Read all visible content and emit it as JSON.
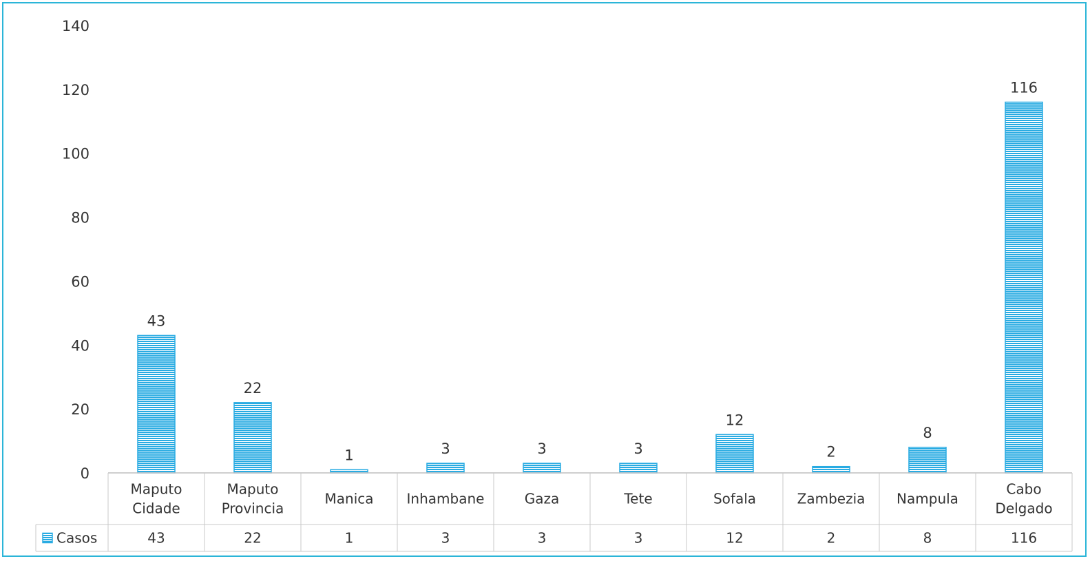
{
  "chart_data": {
    "type": "bar",
    "categories": [
      [
        "Maputo",
        "Cidade"
      ],
      [
        "Maputo",
        "Provincia"
      ],
      [
        "Manica"
      ],
      [
        "Inhambane"
      ],
      [
        "Gaza"
      ],
      [
        "Tete"
      ],
      [
        "Sofala"
      ],
      [
        "Zambezia"
      ],
      [
        "Nampula"
      ],
      [
        "Cabo",
        "Delgado"
      ]
    ],
    "series": [
      {
        "name": "Casos",
        "values": [
          43,
          22,
          1,
          3,
          3,
          3,
          12,
          2,
          8,
          116
        ]
      }
    ],
    "ylim": [
      0,
      140
    ],
    "yticks": [
      0,
      20,
      40,
      60,
      80,
      100,
      120,
      140
    ],
    "grid": false,
    "legend": "data-table-left",
    "data_table": true,
    "bar_color": "#29abe2",
    "bar_edge_color": "#1a8fc4",
    "border_color": "#2bb5d8"
  }
}
